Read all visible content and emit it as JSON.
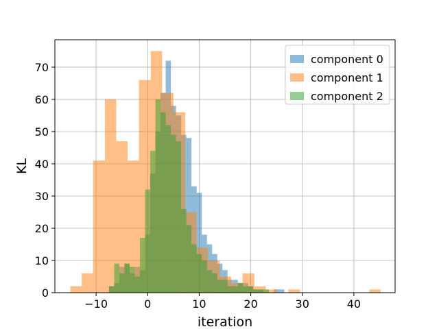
{
  "chart_data": {
    "type": "bar",
    "subtype": "overlapping-histogram",
    "title": "",
    "xlabel": "iteration",
    "ylabel": "KL",
    "xlim": [
      -18,
      48
    ],
    "ylim": [
      0,
      78.5
    ],
    "xticks": [
      -10,
      0,
      10,
      20,
      30,
      40
    ],
    "yticks": [
      0,
      10,
      20,
      30,
      40,
      50,
      60,
      70
    ],
    "xtick_labels": [
      "−10",
      "0",
      "10",
      "20",
      "30",
      "40"
    ],
    "ytick_labels": [
      "0",
      "10",
      "20",
      "30",
      "40",
      "50",
      "60",
      "70"
    ],
    "grid": true,
    "legend_position": "top-right",
    "series": [
      {
        "name": "component 0",
        "color": "#1f77b4",
        "opacity": 0.5,
        "edges": [
          -7.5,
          -6.5,
          -5.5,
          -4.5,
          -3.5,
          -2.5,
          -1.5,
          -0.5,
          0.5,
          1.5,
          2.5,
          3.5,
          4.5,
          5.5,
          6.5,
          7.5,
          8.5,
          9.5,
          10.5,
          11.5,
          12.5,
          13.5,
          14.5,
          15.5,
          16.5,
          17.5,
          18.5,
          19.5,
          20.5,
          21.5,
          22.5,
          23.5,
          24.5,
          25.5,
          26.5,
          27.5,
          28.5
        ],
        "values": [
          2,
          3,
          8,
          9,
          6,
          8,
          7,
          18,
          37,
          50,
          62,
          72,
          58,
          55,
          49,
          48,
          33,
          31,
          18,
          15,
          12,
          9,
          7,
          4,
          4,
          3,
          3,
          2,
          1,
          1,
          0,
          0,
          1,
          1,
          0,
          0
        ]
      },
      {
        "name": "component 1",
        "color": "#ff7f0e",
        "opacity": 0.5,
        "edges": [
          -15,
          -12.8,
          -10.6,
          -8.3,
          -6.1,
          -3.9,
          -1.7,
          0.6,
          2.8,
          5.0,
          7.3,
          9.5,
          11.7,
          14.0,
          16.2,
          18.4,
          20.7,
          22.9,
          25.1,
          27.3,
          29.6,
          31.8,
          34.0,
          36.3,
          38.5,
          40.7,
          43.0,
          45.2
        ],
        "values": [
          2,
          6,
          41,
          60,
          47,
          41,
          66,
          75,
          62,
          56,
          25,
          14,
          10,
          5,
          3,
          6,
          2,
          1,
          0,
          1,
          0,
          0,
          0,
          0,
          0,
          0,
          1
        ]
      },
      {
        "name": "component 2",
        "color": "#2ca02c",
        "opacity": 0.5,
        "edges": [
          -7.5,
          -6.5,
          -5.5,
          -4.5,
          -3.5,
          -2.5,
          -1.5,
          -0.5,
          0.5,
          1.5,
          2.5,
          3.5,
          4.5,
          5.5,
          6.5,
          7.5,
          8.5,
          9.5,
          10.5,
          11.5,
          12.5,
          13.5,
          14.5,
          15.5,
          16.5,
          17.5,
          18.5,
          19.5,
          20.5,
          21.5,
          22.5,
          23.5
        ],
        "values": [
          2,
          9,
          6,
          9,
          8,
          5,
          17,
          32,
          44,
          60,
          56,
          52,
          49,
          47,
          26,
          21,
          15,
          12,
          10,
          7,
          6,
          4,
          4,
          2,
          2,
          3,
          2,
          2,
          1,
          1,
          1
        ]
      }
    ]
  }
}
